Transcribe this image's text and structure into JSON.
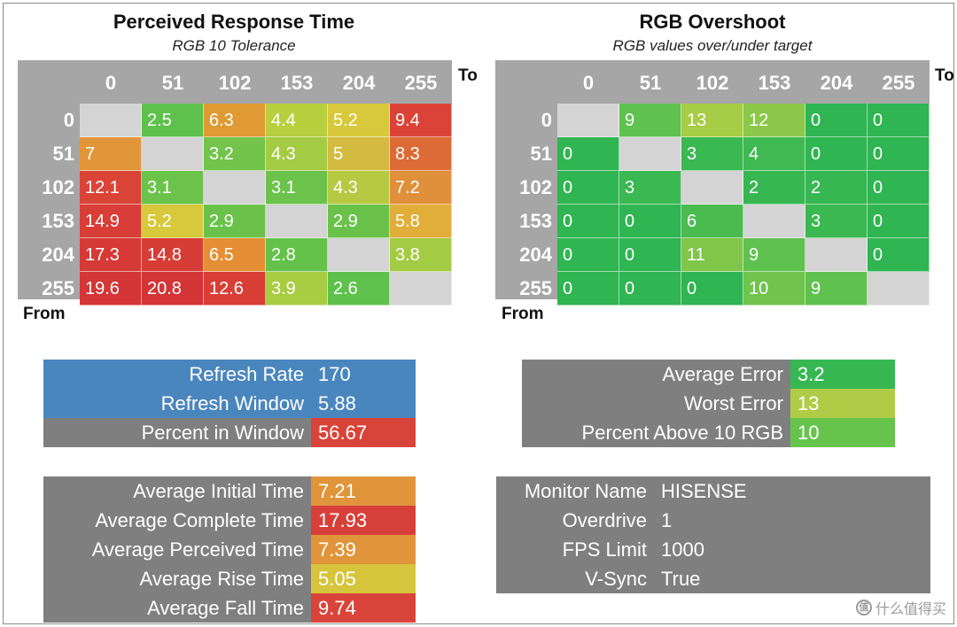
{
  "chart_data": [
    {
      "type": "heatmap",
      "title": "Perceived Response Time",
      "subtitle": "RGB 10 Tolerance",
      "to_label": "To",
      "from_label": "From",
      "columns": [
        "0",
        "51",
        "102",
        "153",
        "204",
        "255"
      ],
      "rows": [
        "0",
        "51",
        "102",
        "153",
        "204",
        "255"
      ],
      "values": [
        [
          null,
          "2.5",
          "6.3",
          "4.4",
          "5.2",
          "9.4"
        ],
        [
          "7",
          null,
          "3.2",
          "4.3",
          "5",
          "8.3"
        ],
        [
          "12.1",
          "3.1",
          null,
          "3.1",
          "4.3",
          "7.2"
        ],
        [
          "14.9",
          "5.2",
          "2.9",
          null,
          "2.9",
          "5.8"
        ],
        [
          "17.3",
          "14.8",
          "6.5",
          "2.8",
          null,
          "3.8"
        ],
        [
          "19.6",
          "20.8",
          "12.6",
          "3.9",
          "2.6",
          null
        ]
      ],
      "colors": [
        [
          null,
          "#5dc14b",
          "#e09a34",
          "#b8cf3e",
          "#d8c93c",
          "#dc4338"
        ],
        [
          "#e2963a",
          null,
          "#72c44a",
          "#a4cb44",
          "#d2bb40",
          "#dd6b36"
        ],
        [
          "#d94437",
          "#6cc34b",
          null,
          "#6cc34b",
          "#b6c942",
          "#e0903a"
        ],
        [
          "#d83d37",
          "#d8c83c",
          "#6ac24a",
          null,
          "#6ac24a",
          "#e1ae3a"
        ],
        [
          "#d63a36",
          "#d73d37",
          "#e48f36",
          "#64c24a",
          null,
          "#a4cb44"
        ],
        [
          "#d43536",
          "#d33536",
          "#d83e36",
          "#a8cc42",
          "#5ec14b",
          null
        ]
      ]
    },
    {
      "type": "heatmap",
      "title": "RGB Overshoot",
      "subtitle": "RGB values over/under target",
      "to_label": "To",
      "from_label": "From",
      "columns": [
        "0",
        "51",
        "102",
        "153",
        "204",
        "255"
      ],
      "rows": [
        "0",
        "51",
        "102",
        "153",
        "204",
        "255"
      ],
      "values": [
        [
          null,
          "9",
          "13",
          "12",
          "0",
          "0"
        ],
        [
          "0",
          null,
          "3",
          "4",
          "0",
          "0"
        ],
        [
          "0",
          "3",
          null,
          "2",
          "2",
          "0"
        ],
        [
          "0",
          "0",
          "6",
          null,
          "3",
          "0"
        ],
        [
          "0",
          "0",
          "11",
          "9",
          null,
          "0"
        ],
        [
          "0",
          "0",
          "0",
          "10",
          "9",
          null
        ]
      ],
      "colors": [
        [
          null,
          "#5fc24e",
          "#a6cd45",
          "#8bc84a",
          "#2fb551",
          "#2fb551"
        ],
        [
          "#2fb551",
          null,
          "#3ab852",
          "#3fb952",
          "#2fb551",
          "#2fb551"
        ],
        [
          "#2fb551",
          "#3ab852",
          null,
          "#36b752",
          "#36b752",
          "#2fb551"
        ],
        [
          "#2fb551",
          "#2fb551",
          "#49bb4f",
          null,
          "#3ab852",
          "#2fb551"
        ],
        [
          "#2fb551",
          "#2fb551",
          "#7fc64b",
          "#5fc24e",
          null,
          "#2fb551"
        ],
        [
          "#2fb551",
          "#2fb551",
          "#2fb551",
          "#70c44c",
          "#5fc24e",
          null
        ]
      ]
    }
  ],
  "refresh_panel": [
    {
      "label": "Refresh Rate",
      "value": "170",
      "label_bg": "#4a86be",
      "value_bg": "#4a86be"
    },
    {
      "label": "Refresh Window",
      "value": "5.88",
      "label_bg": "#4a86be",
      "value_bg": "#4a86be"
    },
    {
      "label": "Percent in Window",
      "value": "56.67",
      "label_bg": "#7f7f7f",
      "value_bg": "#d9443a"
    }
  ],
  "error_panel": [
    {
      "label": "Average Error",
      "value": "3.2",
      "value_bg": "#36b752"
    },
    {
      "label": "Worst Error",
      "value": "13",
      "value_bg": "#b0cc46"
    },
    {
      "label": "Percent Above 10 RGB",
      "value": "10",
      "value_bg": "#66c44c"
    }
  ],
  "time_panel": [
    {
      "label": "Average Initial Time",
      "value": "7.21",
      "value_bg": "#e0953a"
    },
    {
      "label": "Average Complete Time",
      "value": "17.93",
      "value_bg": "#d7403a"
    },
    {
      "label": "Average Perceived Time",
      "value": "7.39",
      "value_bg": "#e0953a"
    },
    {
      "label": "Average Rise Time",
      "value": "5.05",
      "value_bg": "#d6c53c"
    },
    {
      "label": "Average Fall Time",
      "value": "9.74",
      "value_bg": "#d9443a"
    }
  ],
  "monitor_info": [
    {
      "label": "Monitor Name",
      "value": "HISENSE"
    },
    {
      "label": "Overdrive",
      "value": "1"
    },
    {
      "label": "FPS Limit",
      "value": "1000"
    },
    {
      "label": "V-Sync",
      "value": "True"
    }
  ],
  "watermark": {
    "icon": "值",
    "text": "什么值得买"
  },
  "colors": {
    "grid_header": "#a6a6a6",
    "diagonal": "#d4d4d4",
    "panel_gray": "#7f7f7f"
  }
}
